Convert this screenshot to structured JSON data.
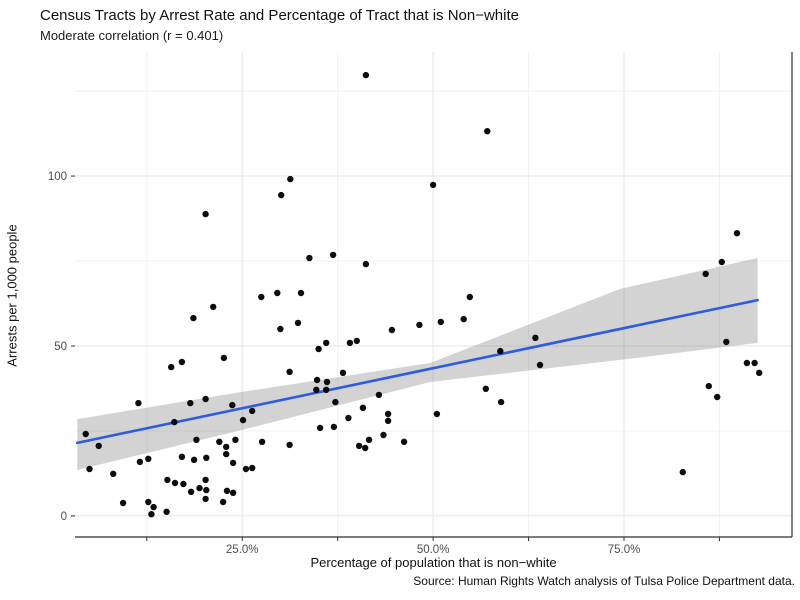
{
  "title": "Census Tracts by Arrest Rate and Percentage of Tract that is Non−white",
  "subtitle": "Moderate correlation (r = 0.401)",
  "caption": "Source: Human Rights Watch analysis of Tulsa Police Department data.",
  "chart_data": {
    "type": "scatter",
    "title": "Census Tracts by Arrest Rate and Percentage of Tract that is Non−white",
    "subtitle": "Moderate correlation (r = 0.401)",
    "caption": "Source: Human Rights Watch analysis of Tulsa Police Department data.",
    "xlabel": "Percentage of population that is non−white",
    "ylabel": "Arrests per 1,000 people",
    "correlation_r": 0.401,
    "x_unit": "percent",
    "xlim": [
      3.1,
      97.0
    ],
    "ylim": [
      -6.2,
      136.5
    ],
    "x_major_ticks": [
      25,
      50,
      75
    ],
    "x_tick_labels": [
      "25.0%",
      "50.0%",
      "75.0%"
    ],
    "x_minor_ticks": [
      12.5,
      37.5,
      62.5,
      87.5
    ],
    "y_major_ticks": [
      0,
      50,
      100
    ],
    "y_tick_labels": [
      "0",
      "50",
      "100"
    ],
    "y_minor_ticks": [
      25,
      75,
      125
    ],
    "grid": true,
    "legend_position": "none",
    "point_color": "#000000",
    "point_radius": 3.2,
    "points": [
      [
        41.2,
        129.7
      ],
      [
        31.3,
        99.1
      ],
      [
        30.1,
        94.4
      ],
      [
        20.2,
        88.8
      ],
      [
        33.8,
        75.9
      ],
      [
        36.9,
        76.8
      ],
      [
        41.2,
        74.1
      ],
      [
        27.5,
        64.4
      ],
      [
        29.6,
        65.6
      ],
      [
        32.7,
        65.6
      ],
      [
        57.1,
        113.2
      ],
      [
        50.0,
        97.4
      ],
      [
        89.8,
        83.2
      ],
      [
        87.8,
        74.7
      ],
      [
        85.7,
        71.2
      ],
      [
        54.8,
        64.4
      ],
      [
        21.2,
        61.5
      ],
      [
        18.6,
        58.2
      ],
      [
        30.0,
        55.0
      ],
      [
        32.3,
        56.8
      ],
      [
        35.0,
        49.1
      ],
      [
        36.0,
        50.9
      ],
      [
        39.1,
        50.9
      ],
      [
        40.0,
        51.5
      ],
      [
        44.6,
        54.7
      ],
      [
        48.2,
        56.2
      ],
      [
        15.7,
        43.8
      ],
      [
        17.1,
        45.3
      ],
      [
        22.6,
        46.5
      ],
      [
        31.2,
        42.4
      ],
      [
        34.8,
        40.0
      ],
      [
        36.1,
        39.4
      ],
      [
        34.7,
        37.1
      ],
      [
        36.0,
        37.1
      ],
      [
        38.2,
        42.1
      ],
      [
        37.2,
        33.5
      ],
      [
        11.4,
        33.2
      ],
      [
        18.2,
        33.2
      ],
      [
        20.2,
        34.4
      ],
      [
        23.7,
        32.6
      ],
      [
        25.1,
        28.2
      ],
      [
        26.3,
        30.9
      ],
      [
        16.1,
        27.6
      ],
      [
        4.5,
        24.1
      ],
      [
        6.2,
        20.6
      ],
      [
        19.0,
        22.4
      ],
      [
        22.0,
        21.8
      ],
      [
        24.1,
        22.4
      ],
      [
        22.9,
        20.3
      ],
      [
        22.9,
        18.2
      ],
      [
        17.1,
        17.4
      ],
      [
        18.7,
        16.5
      ],
      [
        20.3,
        17.1
      ],
      [
        11.6,
        15.9
      ],
      [
        12.7,
        16.8
      ],
      [
        5.0,
        13.8
      ],
      [
        8.1,
        12.4
      ],
      [
        23.8,
        15.6
      ],
      [
        25.5,
        13.8
      ],
      [
        26.3,
        14.1
      ],
      [
        15.2,
        10.6
      ],
      [
        16.2,
        9.7
      ],
      [
        17.3,
        9.4
      ],
      [
        18.3,
        7.1
      ],
      [
        19.4,
        8.2
      ],
      [
        20.2,
        10.6
      ],
      [
        20.3,
        7.6
      ],
      [
        23.0,
        7.4
      ],
      [
        23.8,
        6.8
      ],
      [
        20.2,
        5.0
      ],
      [
        22.5,
        4.1
      ],
      [
        9.4,
        3.8
      ],
      [
        12.7,
        4.1
      ],
      [
        13.4,
        2.6
      ],
      [
        15.1,
        1.2
      ],
      [
        13.1,
        0.5
      ],
      [
        44.1,
        30.0
      ],
      [
        44.1,
        28.0
      ],
      [
        51.0,
        57.1
      ],
      [
        54.0,
        57.9
      ],
      [
        63.4,
        52.4
      ],
      [
        58.8,
        48.5
      ],
      [
        64.0,
        44.4
      ],
      [
        88.4,
        51.2
      ],
      [
        91.1,
        45.0
      ],
      [
        92.1,
        45.0
      ],
      [
        92.7,
        42.1
      ],
      [
        86.1,
        38.2
      ],
      [
        87.2,
        35.0
      ],
      [
        56.9,
        37.4
      ],
      [
        58.9,
        33.5
      ],
      [
        50.5,
        30.0
      ],
      [
        82.7,
        12.9
      ],
      [
        46.2,
        21.8
      ],
      [
        42.9,
        35.6
      ],
      [
        40.8,
        31.8
      ],
      [
        38.9,
        28.8
      ],
      [
        37.0,
        26.2
      ],
      [
        43.5,
        23.8
      ],
      [
        41.6,
        22.4
      ],
      [
        40.3,
        20.6
      ],
      [
        41.1,
        20.0
      ],
      [
        35.2,
        25.9
      ],
      [
        27.6,
        21.8
      ],
      [
        31.2,
        20.9
      ]
    ],
    "trend_line": {
      "type": "linear",
      "x1": 3.4,
      "y1": 21.5,
      "x2": 92.5,
      "y2": 63.5,
      "color": "#2E5BE0",
      "width": 2.6
    },
    "confidence_band": {
      "upper": [
        [
          3.4,
          28.5
        ],
        [
          25.0,
          36.5
        ],
        [
          49.6,
          45.0
        ],
        [
          74.5,
          66.8
        ],
        [
          92.5,
          75.9
        ]
      ],
      "lower": [
        [
          3.4,
          13.5
        ],
        [
          25.0,
          25.3
        ],
        [
          49.6,
          39.4
        ],
        [
          74.5,
          45.9
        ],
        [
          92.5,
          50.9
        ]
      ],
      "color": "#808080",
      "opacity": 0.35
    },
    "style": {
      "grid_major_color": "#e4e4e4",
      "grid_minor_color": "#f1f1f1",
      "axis_line_color": "#2f2f2f",
      "tick_label_color": "#4d4d4d",
      "panel_background": "#ffffff"
    }
  }
}
